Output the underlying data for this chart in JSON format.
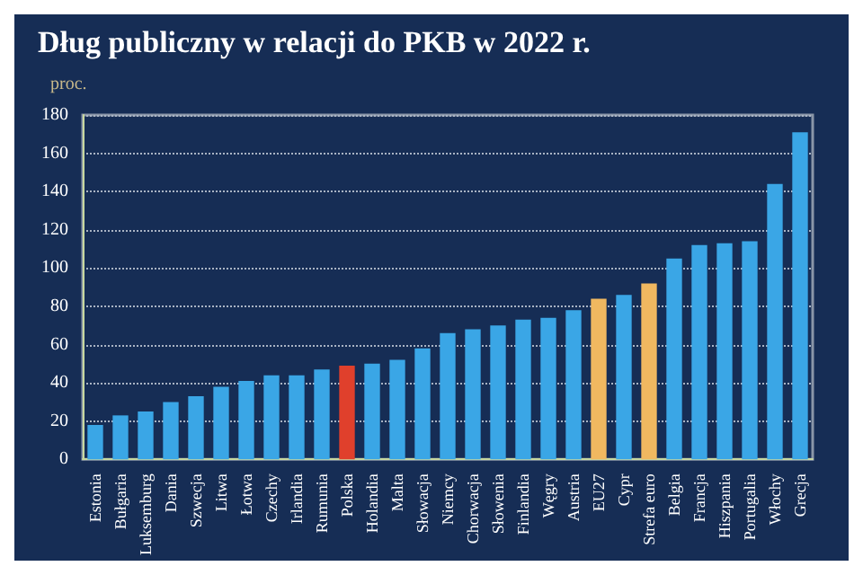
{
  "chart_data": {
    "type": "bar",
    "title": "Dług publiczny w relacji do PKB w 2022 r.",
    "ylabel": "proc.",
    "categories": [
      "Estonia",
      "Bułgaria",
      "Luksemburg",
      "Dania",
      "Szwecja",
      "Litwa",
      "Łotwa",
      "Czechy",
      "Irlandia",
      "Rumunia",
      "Polska",
      "Holandia",
      "Malta",
      "Słowacja",
      "Niemcy",
      "Chorwacja",
      "Słowenia",
      "Finlandia",
      "Węgry",
      "Austria",
      "EU27",
      "Cypr",
      "Strefa euro",
      "Belgia",
      "Francja",
      "Hiszpania",
      "Portugalia",
      "Włochy",
      "Grecja"
    ],
    "values": [
      18,
      23,
      25,
      30,
      33,
      38,
      41,
      44,
      44,
      47,
      49,
      50,
      52,
      58,
      66,
      68,
      70,
      73,
      74,
      78,
      84,
      86,
      92,
      105,
      112,
      113,
      114,
      144,
      171
    ],
    "colors": [
      "#3aa6e6",
      "#3aa6e6",
      "#3aa6e6",
      "#3aa6e6",
      "#3aa6e6",
      "#3aa6e6",
      "#3aa6e6",
      "#3aa6e6",
      "#3aa6e6",
      "#3aa6e6",
      "#e0402c",
      "#3aa6e6",
      "#3aa6e6",
      "#3aa6e6",
      "#3aa6e6",
      "#3aa6e6",
      "#3aa6e6",
      "#3aa6e6",
      "#3aa6e6",
      "#3aa6e6",
      "#f0b860",
      "#3aa6e6",
      "#f0b860",
      "#3aa6e6",
      "#3aa6e6",
      "#3aa6e6",
      "#3aa6e6",
      "#3aa6e6",
      "#3aa6e6"
    ],
    "ylim": [
      0,
      180
    ],
    "yticks": [
      0,
      20,
      40,
      60,
      80,
      100,
      120,
      140,
      160,
      180
    ],
    "grid": "y"
  }
}
